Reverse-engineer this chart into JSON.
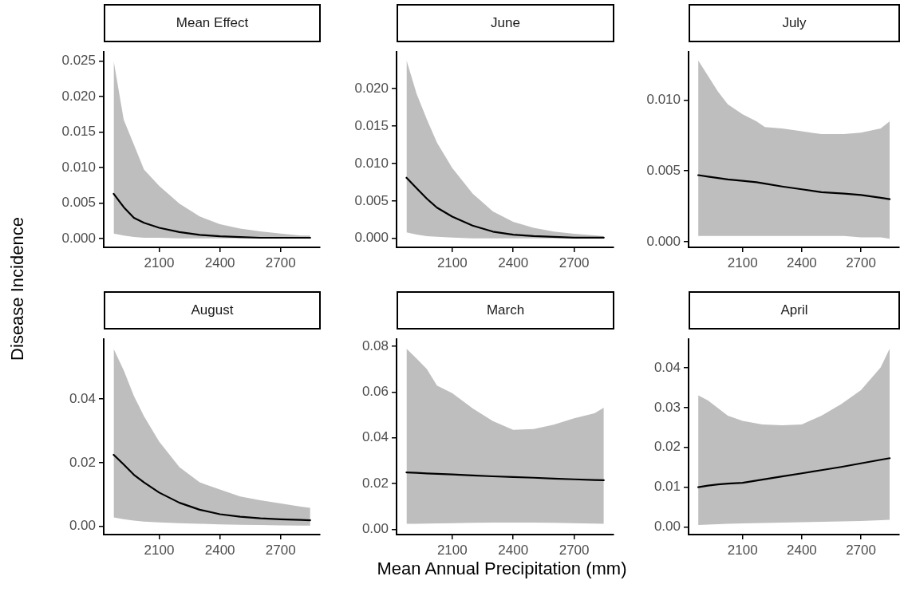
{
  "chart_data": [
    {
      "type": "line",
      "title": "Mean Effect",
      "x": [
        1875,
        1925,
        1975,
        2025,
        2100,
        2200,
        2300,
        2400,
        2500,
        2600,
        2700,
        2800,
        2846
      ],
      "xlim": [
        1826,
        2894
      ],
      "xticks": [
        2100,
        2400,
        2700
      ],
      "ylim": [
        -0.00125,
        0.02625
      ],
      "yticks": [
        {
          "value": 0,
          "label": "0.000"
        },
        {
          "value": 0.005,
          "label": "0.005"
        },
        {
          "value": 0.01,
          "label": "0.010"
        },
        {
          "value": 0.015,
          "label": "0.015"
        },
        {
          "value": 0.02,
          "label": "0.020"
        },
        {
          "value": 0.025,
          "label": "0.025"
        }
      ],
      "series": [
        {
          "color": "#000000",
          "values": [
            0.0063,
            0.0044,
            0.0029,
            0.0022,
            0.0015,
            0.0009,
            0.0005,
            0.0003,
            0.0002,
            0.0001,
            0.0001,
            0.0001,
            0.0001
          ],
          "lower": [
            0.0007,
            0.0004,
            0.0002,
            0.0001,
            0.0001,
            0,
            0,
            0,
            0,
            0,
            0,
            0,
            0
          ],
          "upper": [
            0.025,
            0.0167,
            0.0132,
            0.0097,
            0.0074,
            0.0049,
            0.0031,
            0.002,
            0.0014,
            0.001,
            0.0007,
            0.0004,
            0.0004
          ]
        }
      ]
    },
    {
      "type": "line",
      "title": "June",
      "x": [
        1875,
        1925,
        1975,
        2025,
        2100,
        2200,
        2300,
        2400,
        2500,
        2600,
        2700,
        2800,
        2846
      ],
      "xlim": [
        1826,
        2894
      ],
      "xticks": [
        2100,
        2400,
        2700
      ],
      "ylim": [
        -0.0012,
        0.0249
      ],
      "yticks": [
        {
          "value": 0,
          "label": "0.000"
        },
        {
          "value": 0.005,
          "label": "0.005"
        },
        {
          "value": 0.01,
          "label": "0.010"
        },
        {
          "value": 0.015,
          "label": "0.015"
        },
        {
          "value": 0.02,
          "label": "0.020"
        }
      ],
      "series": [
        {
          "color": "#000000",
          "values": [
            0.0081,
            0.0067,
            0.0053,
            0.0041,
            0.0029,
            0.0017,
            0.0009,
            0.0005,
            0.0003,
            0.0002,
            0.0001,
            0.0001,
            0.0001
          ],
          "lower": [
            0.0008,
            0.0005,
            0.0003,
            0.0002,
            0.0001,
            0,
            0,
            0,
            0,
            0,
            0,
            0,
            0
          ],
          "upper": [
            0.0238,
            0.0193,
            0.0159,
            0.0128,
            0.0094,
            0.006,
            0.0036,
            0.0022,
            0.0014,
            0.0009,
            0.0006,
            0.0004,
            0.0003
          ]
        }
      ]
    },
    {
      "type": "line",
      "title": "July",
      "x": [
        1875,
        1925,
        1975,
        2025,
        2100,
        2170,
        2213,
        2300,
        2400,
        2500,
        2614,
        2700,
        2800,
        2846
      ],
      "xlim": [
        1826,
        2894
      ],
      "xticks": [
        2100,
        2400,
        2700
      ],
      "ylim": [
        -0.0004,
        0.0134
      ],
      "yticks": [
        {
          "value": 0,
          "label": "0.000"
        },
        {
          "value": 0.005,
          "label": "0.005"
        },
        {
          "value": 0.01,
          "label": "0.010"
        }
      ],
      "series": [
        {
          "color": "#000000",
          "values": [
            0.0047,
            0.0046,
            0.0045,
            0.0044,
            0.0043,
            0.0042,
            0.0041,
            0.0039,
            0.0037,
            0.0035,
            0.0034,
            0.0033,
            0.0031,
            0.003
          ],
          "lower": [
            0.0004,
            0.0004,
            0.0004,
            0.0004,
            0.0004,
            0.0004,
            0.0004,
            0.0004,
            0.0004,
            0.0004,
            0.0004,
            0.0003,
            0.0003,
            0.0002
          ],
          "upper": [
            0.0128,
            0.0117,
            0.0106,
            0.0097,
            0.009,
            0.0085,
            0.0081,
            0.008,
            0.0078,
            0.0076,
            0.0076,
            0.0077,
            0.008,
            0.0085
          ]
        }
      ]
    },
    {
      "type": "line",
      "title": "August",
      "ylabel": "Disease Incidence",
      "x": [
        1875,
        1925,
        1975,
        2025,
        2100,
        2200,
        2300,
        2400,
        2500,
        2600,
        2700,
        2800,
        2846
      ],
      "xlim": [
        1826,
        2894
      ],
      "xticks": [
        2100,
        2400,
        2700
      ],
      "ylim": [
        -0.0026,
        0.0588
      ],
      "yticks": [
        {
          "value": 0,
          "label": "0.00"
        },
        {
          "value": 0.02,
          "label": "0.02"
        },
        {
          "value": 0.04,
          "label": "0.04"
        }
      ],
      "series": [
        {
          "color": "#000000",
          "values": [
            0.0225,
            0.0194,
            0.0162,
            0.0138,
            0.0106,
            0.0074,
            0.0052,
            0.0038,
            0.003,
            0.0025,
            0.0022,
            0.002,
            0.0019
          ],
          "lower": [
            0.0028,
            0.0022,
            0.0018,
            0.0015,
            0.0012,
            0.001,
            0.0008,
            0.0006,
            0.0005,
            0.0004,
            0.0003,
            0.0002,
            0.0002
          ],
          "upper": [
            0.0558,
            0.049,
            0.041,
            0.0346,
            0.0266,
            0.0186,
            0.0138,
            0.0116,
            0.0094,
            0.0082,
            0.0072,
            0.0062,
            0.0058
          ]
        }
      ]
    },
    {
      "type": "line",
      "title": "March",
      "xlabel": "Mean Annual Precipitation (mm)",
      "x": [
        1875,
        1925,
        1975,
        2025,
        2100,
        2200,
        2300,
        2400,
        2500,
        2600,
        2700,
        2800,
        2846
      ],
      "xlim": [
        1826,
        2894
      ],
      "xticks": [
        2100,
        2400,
        2700
      ],
      "ylim": [
        -0.0022,
        0.083
      ],
      "yticks": [
        {
          "value": 0,
          "label": "0.00"
        },
        {
          "value": 0.02,
          "label": "0.02"
        },
        {
          "value": 0.04,
          "label": "0.04"
        },
        {
          "value": 0.06,
          "label": "0.06"
        },
        {
          "value": 0.08,
          "label": "0.08"
        }
      ],
      "series": [
        {
          "color": "#000000",
          "values": [
            0.0249,
            0.0247,
            0.0245,
            0.0243,
            0.024,
            0.0236,
            0.0232,
            0.0229,
            0.0226,
            0.0222,
            0.0219,
            0.0216,
            0.0215
          ],
          "lower": [
            0.0025,
            0.0025,
            0.0026,
            0.0027,
            0.0028,
            0.0029,
            0.003,
            0.003,
            0.003,
            0.0029,
            0.0028,
            0.0026,
            0.0025
          ],
          "upper": [
            0.0789,
            0.0745,
            0.07,
            0.0628,
            0.0595,
            0.0529,
            0.0473,
            0.0435,
            0.0438,
            0.0457,
            0.0485,
            0.0507,
            0.0531
          ]
        }
      ]
    },
    {
      "type": "line",
      "title": "April",
      "x": [
        1875,
        1925,
        1975,
        2025,
        2100,
        2200,
        2300,
        2400,
        2500,
        2600,
        2700,
        2800,
        2846
      ],
      "xlim": [
        1826,
        2894
      ],
      "xticks": [
        2100,
        2400,
        2700
      ],
      "ylim": [
        -0.0019,
        0.0472
      ],
      "yticks": [
        {
          "value": 0,
          "label": "0.00"
        },
        {
          "value": 0.01,
          "label": "0.01"
        },
        {
          "value": 0.02,
          "label": "0.02"
        },
        {
          "value": 0.03,
          "label": "0.03"
        },
        {
          "value": 0.04,
          "label": "0.04"
        }
      ],
      "series": [
        {
          "color": "#000000",
          "values": [
            0.01,
            0.0104,
            0.0107,
            0.0109,
            0.0111,
            0.0119,
            0.0127,
            0.0135,
            0.0143,
            0.0151,
            0.016,
            0.0169,
            0.0173
          ],
          "lower": [
            0.0005,
            0.0006,
            0.0007,
            0.0008,
            0.0009,
            0.001,
            0.0011,
            0.0012,
            0.0013,
            0.0014,
            0.0015,
            0.0017,
            0.0018
          ],
          "upper": [
            0.0331,
            0.0318,
            0.0299,
            0.028,
            0.0267,
            0.0258,
            0.0256,
            0.0258,
            0.028,
            0.0309,
            0.0344,
            0.0401,
            0.0449
          ]
        }
      ]
    }
  ]
}
